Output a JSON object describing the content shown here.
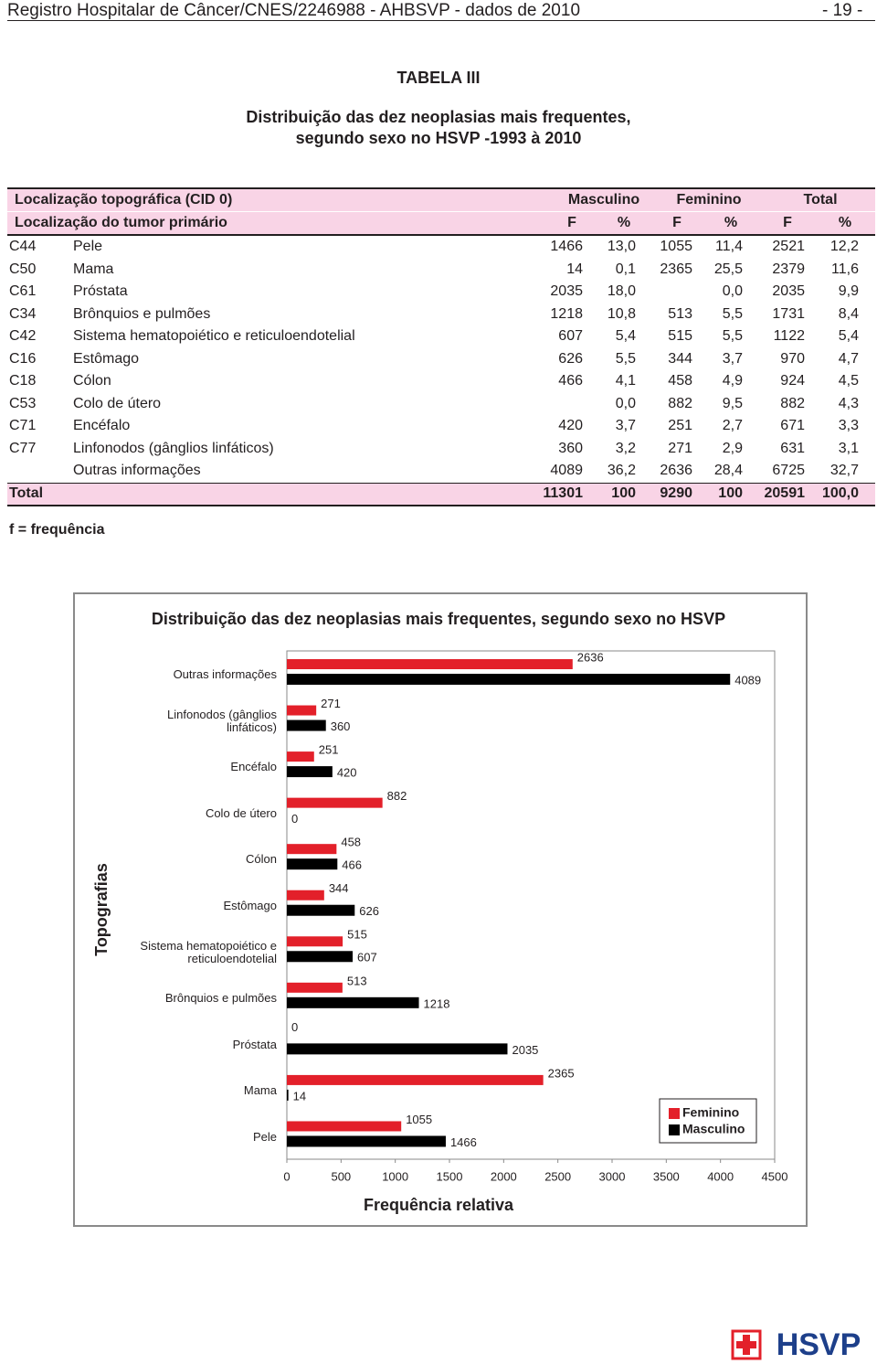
{
  "header": {
    "title": "Registro Hospitalar de Câncer/CNES/2246988 - AHBSVP - dados de 2010",
    "page": "- 19 -"
  },
  "table_title": "TABELA III",
  "subtitle": [
    "Distribuição  das dez neoplasias mais frequentes,",
    "segundo sexo no HSVP -1993 à 2010"
  ],
  "table": {
    "header_groups": [
      "Localização topográfica (CID 0)",
      "Masculino",
      "Feminino",
      "Total"
    ],
    "header_cols": [
      "Localização do tumor primário",
      "F",
      "%",
      "F",
      "%",
      "F",
      "%"
    ],
    "rows": [
      [
        "C44",
        "Pele",
        "1466",
        "13,0",
        "1055",
        "11,4",
        "2521",
        "12,2"
      ],
      [
        "C50",
        "Mama",
        "14",
        "0,1",
        "2365",
        "25,5",
        "2379",
        "11,6"
      ],
      [
        "C61",
        "Próstata",
        "2035",
        "18,0",
        null,
        "0,0",
        "2035",
        "9,9"
      ],
      [
        "C34",
        "Brônquios e pulmões",
        "1218",
        "10,8",
        "513",
        "5,5",
        "1731",
        "8,4"
      ],
      [
        "C42",
        "Sistema hematopoiético e reticuloendotelial",
        "607",
        "5,4",
        "515",
        "5,5",
        "1122",
        "5,4"
      ],
      [
        "C16",
        "Estômago",
        "626",
        "5,5",
        "344",
        "3,7",
        "970",
        "4,7"
      ],
      [
        "C18",
        "Cólon",
        "466",
        "4,1",
        "458",
        "4,9",
        "924",
        "4,5"
      ],
      [
        "C53",
        "Colo de útero",
        null,
        "0,0",
        "882",
        "9,5",
        "882",
        "4,3"
      ],
      [
        "C71",
        "Encéfalo",
        "420",
        "3,7",
        "251",
        "2,7",
        "671",
        "3,3"
      ],
      [
        "C77",
        "Linfonodos (gânglios linfáticos)",
        "360",
        "3,2",
        "271",
        "2,9",
        "631",
        "3,1"
      ],
      [
        null,
        "Outras informações",
        "4089",
        "36,2",
        "2636",
        "28,4",
        "6725",
        "32,7"
      ]
    ],
    "total": [
      "Total",
      "11301",
      "100",
      "9290",
      "100",
      "20591",
      "100,0"
    ]
  },
  "footnote": "f = frequência",
  "chart_data": {
    "type": "bar",
    "orientation": "horizontal",
    "title": "Distribuição das dez neoplasias mais frequentes, segundo sexo no  HSVP",
    "xlabel": "Frequência relativa",
    "ylabel": "Topografias",
    "categories": [
      "Outras informações",
      "Linfonodos (gânglios linfáticos)",
      "Encéfalo",
      "Colo de útero",
      "Cólon",
      "Estômago",
      "Sistema hematopoiético e reticuloendotelial",
      "Brônquios e pulmões",
      "Próstata",
      "Mama",
      "Pele"
    ],
    "series": [
      {
        "name": "Feminino",
        "color": "#e3202a",
        "values": [
          2636,
          271,
          251,
          882,
          458,
          344,
          515,
          513,
          0,
          2365,
          1055
        ]
      },
      {
        "name": "Masculino",
        "color": "#000000",
        "values": [
          4089,
          360,
          420,
          0,
          466,
          626,
          607,
          1218,
          2035,
          14,
          1466
        ]
      }
    ],
    "xlim": [
      0,
      4500
    ],
    "xticks": [
      0,
      500,
      1000,
      1500,
      2000,
      2500,
      3000,
      3500,
      4000,
      4500
    ],
    "grid": false,
    "legend": "lower right"
  },
  "logo": "HSVP"
}
